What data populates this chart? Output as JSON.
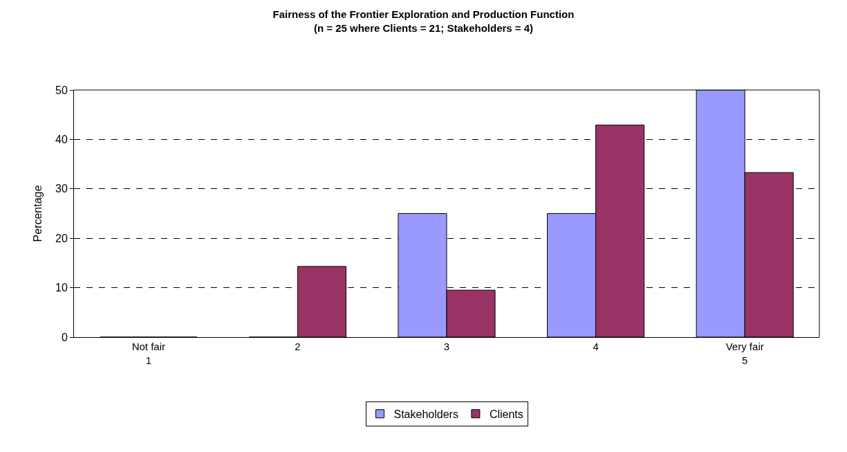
{
  "chart_data": {
    "type": "bar",
    "title": "Fairness of the Frontier Exploration and Production Function\n(n = 25 where Clients = 21; Stakeholders = 4)",
    "ylabel": "Percentage",
    "categories": [
      "Not fair\n1",
      "2",
      "3",
      "4",
      "Very fair\n5"
    ],
    "series": [
      {
        "name": "Stakeholders",
        "color": "#9999ff",
        "values": [
          0,
          0,
          25,
          25,
          50
        ]
      },
      {
        "name": "Clients",
        "color": "#993366",
        "values": [
          0,
          14.3,
          9.5,
          42.9,
          33.3
        ]
      }
    ],
    "ylim": [
      0,
      50
    ],
    "yticks": [
      0,
      10,
      20,
      30,
      40,
      50
    ],
    "grid": "y",
    "legend": "bottom"
  }
}
